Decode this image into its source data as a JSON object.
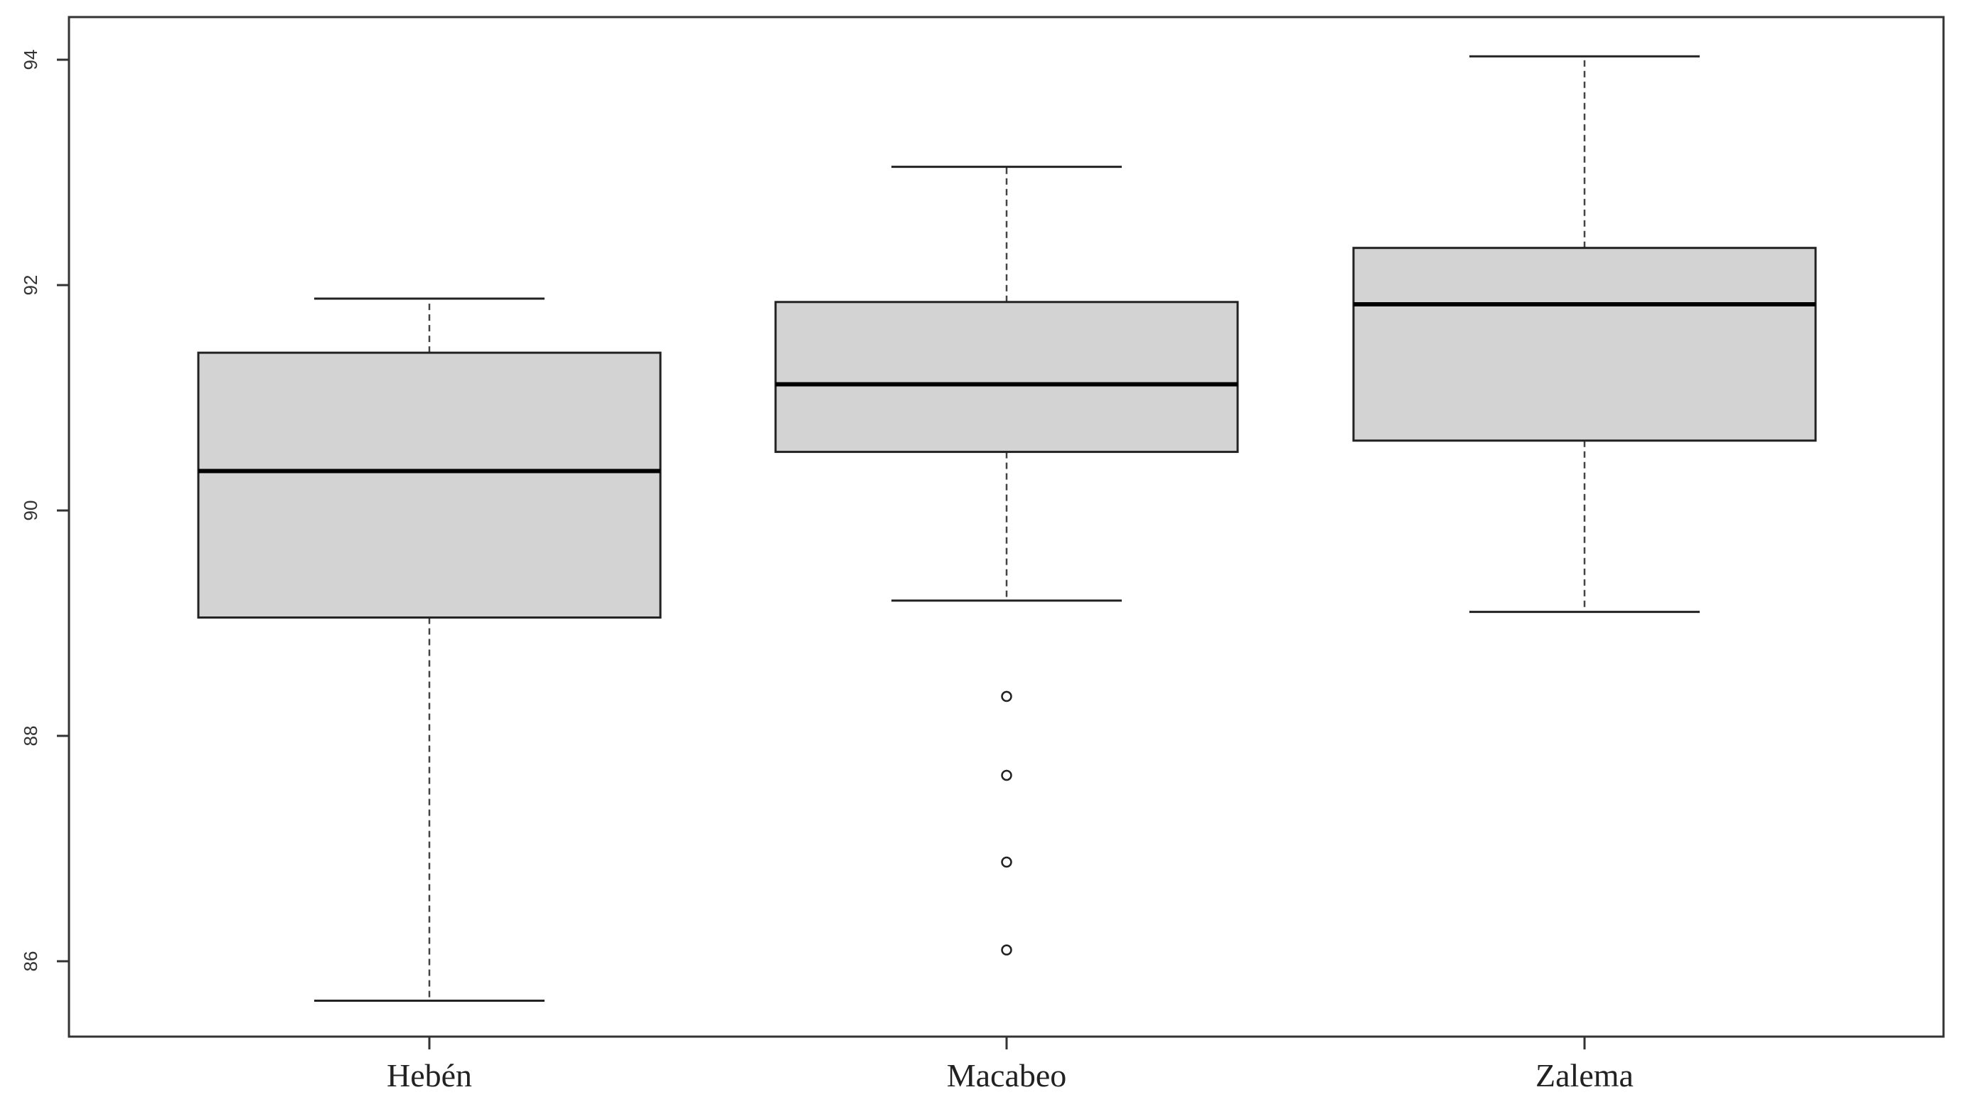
{
  "chart_data": {
    "type": "boxplot",
    "title": "",
    "xlabel": "",
    "ylabel": "",
    "categories": [
      "Hebén",
      "Macabeo",
      "Zalema"
    ],
    "yticks": [
      86,
      88,
      90,
      92,
      94
    ],
    "ytick_labels": [
      "86",
      "88",
      "90",
      "92",
      "94"
    ],
    "ylim": [
      85.3,
      94.4
    ],
    "grid": false,
    "legend": "none",
    "colors": {
      "box_fill": "#d3d3d3",
      "stroke": "#222222",
      "median": "#000000",
      "whisker": "#444444"
    },
    "boxes": [
      {
        "category": "Hebén",
        "whisker_low": 85.65,
        "q1": 89.05,
        "median": 90.35,
        "q3": 91.4,
        "whisker_high": 91.88,
        "outliers": []
      },
      {
        "category": "Macabeo",
        "whisker_low": 89.2,
        "q1": 90.52,
        "median": 91.12,
        "q3": 91.85,
        "whisker_high": 93.05,
        "outliers": [
          88.35,
          87.65,
          86.88,
          86.1
        ]
      },
      {
        "category": "Zalema",
        "whisker_low": 89.1,
        "q1": 90.62,
        "median": 91.83,
        "q3": 92.33,
        "whisker_high": 94.03,
        "outliers": []
      }
    ]
  }
}
